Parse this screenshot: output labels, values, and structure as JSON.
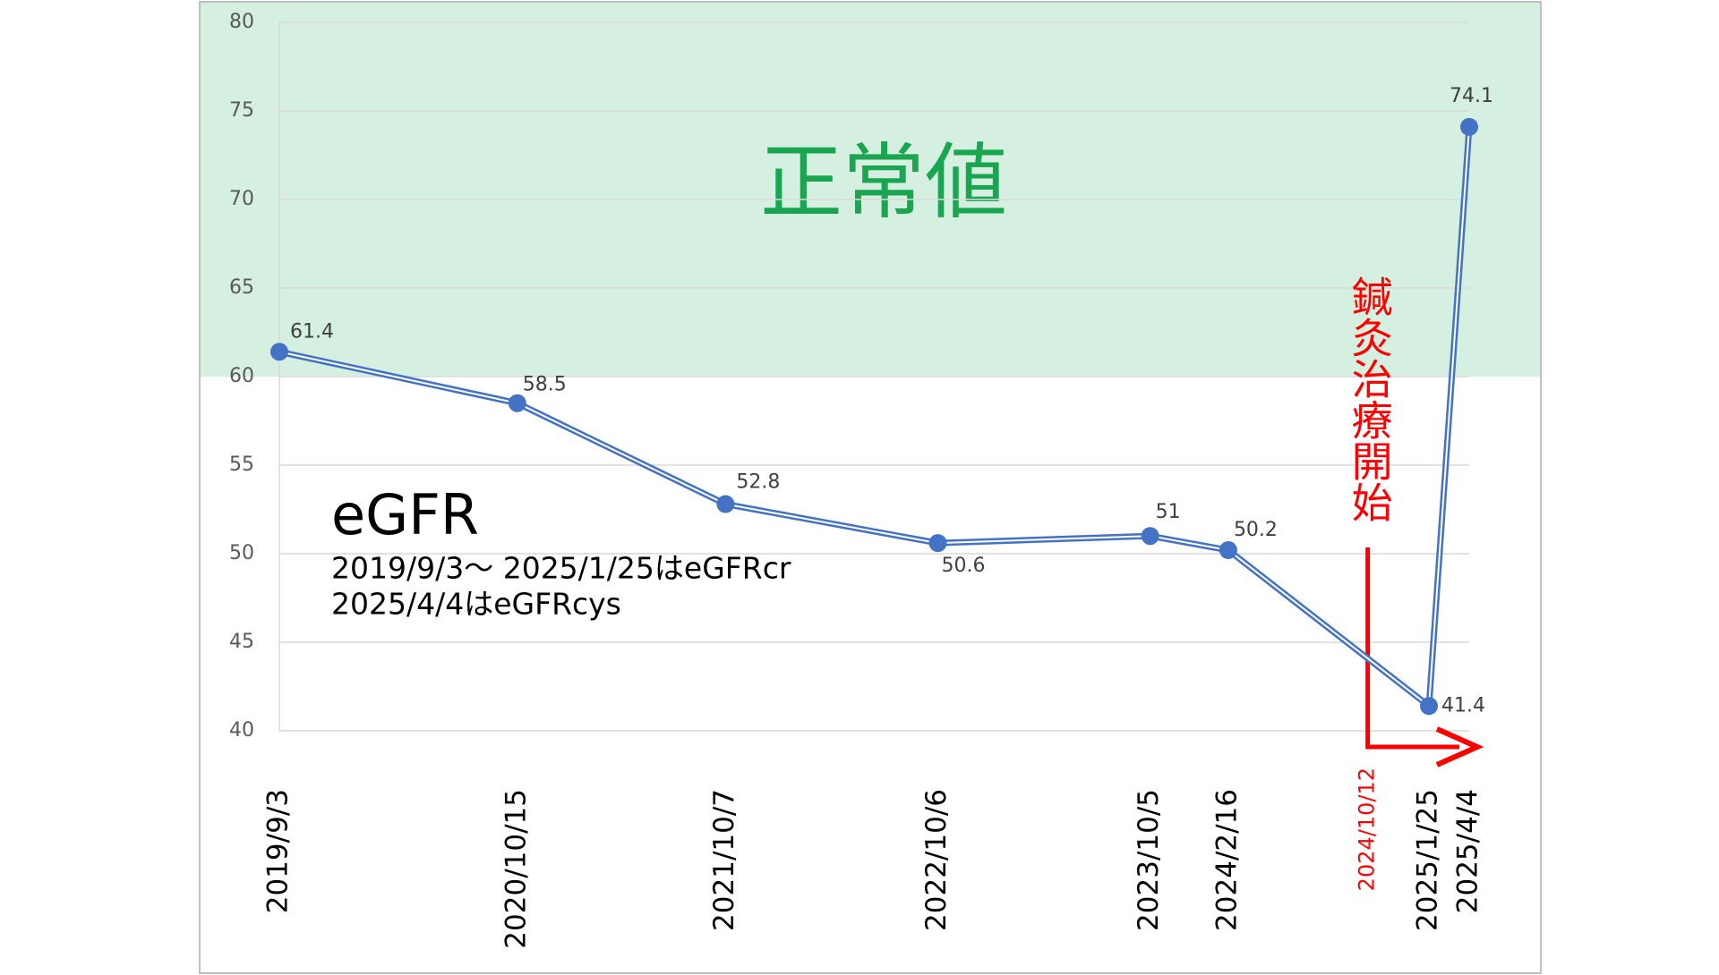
{
  "chart_data": {
    "type": "line",
    "x": [
      "2019/9/3",
      "2020/10/15",
      "2021/10/7",
      "2022/10/6",
      "2023/10/5",
      "2024/2/16",
      "2025/1/25",
      "2025/4/4"
    ],
    "series": [
      {
        "name": "eGFR",
        "color": "#4472c4",
        "values": [
          61.4,
          58.5,
          52.8,
          50.6,
          51,
          50.2,
          41.4,
          74.1
        ]
      }
    ],
    "xlim": [
      "2019/9/3",
      "2025/4/4"
    ],
    "ylim": [
      40,
      80
    ],
    "yticks": [
      40,
      45,
      50,
      55,
      60,
      65,
      70,
      75,
      80
    ],
    "grid": true,
    "normal_range": {
      "label": "正常値",
      "from": 60,
      "to": 80,
      "color": "#d5f0e0"
    },
    "notes": [
      "2019/9/3～ 2025/1/25はeGFRcr",
      "2025/4/4はeGFRcys"
    ],
    "event": {
      "label": "鍼灸治療開始",
      "date": "2024/10/12",
      "color": "#ff0000"
    }
  }
}
